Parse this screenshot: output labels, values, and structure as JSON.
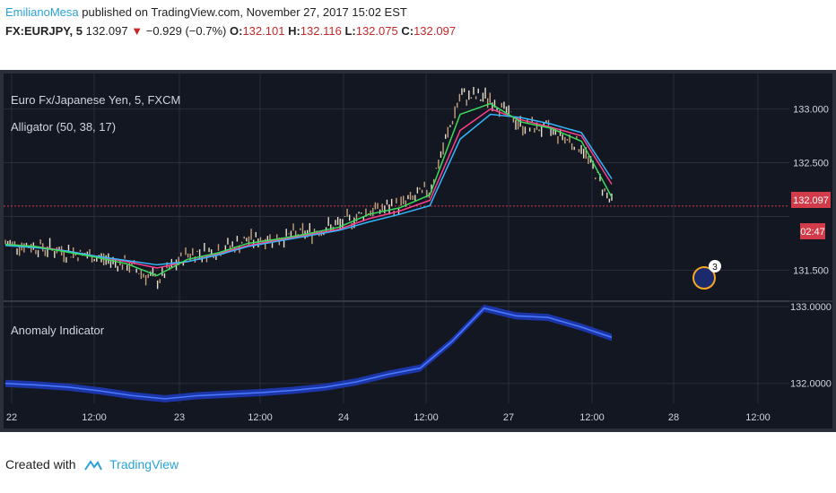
{
  "header": {
    "author": "EmilianoMesa",
    "published": "published on TradingView.com, November 27, 2017 15:02 EST",
    "symbol": "FX:EURJPY, 5",
    "last": "132.097",
    "change": "−0.929 (−0.7%)",
    "o_label": "O:",
    "o_value": "132.101",
    "h_label": "H:",
    "h_value": "132.116",
    "l_label": "L:",
    "l_value": "132.075",
    "c_label": "C:",
    "c_value": "132.097"
  },
  "chart_data": [
    {
      "type": "candlestick",
      "title": "Euro Fx/Japanese Yen, 5, FXCM",
      "indicator": "Alligator (50, 38, 17)",
      "ylim": [
        131.22,
        133.33
      ],
      "y_ticks": [
        "133.000",
        "132.500",
        "131.500"
      ],
      "price_label": "132.097",
      "countdown_label": "02:47",
      "current_price": 132.097,
      "grid": true,
      "series": [
        {
          "color": "#f0e68c",
          "x": [
            0,
            4,
            8,
            12,
            16,
            20,
            24,
            28,
            32,
            36,
            40,
            44,
            48,
            52,
            56,
            60,
            64,
            68,
            72,
            76,
            78
          ],
          "values": [
            131.75,
            131.72,
            131.67,
            131.62,
            131.55,
            131.4,
            131.65,
            131.68,
            131.78,
            131.8,
            131.85,
            131.92,
            132.05,
            132.1,
            132.25,
            133.12,
            133.1,
            132.85,
            132.8,
            132.65,
            132.12
          ]
        }
      ],
      "lines": [
        {
          "color": "#ff3f8e",
          "values": [
            131.74,
            131.72,
            131.68,
            131.63,
            131.58,
            131.52,
            131.58,
            131.65,
            131.73,
            131.78,
            131.83,
            131.88,
            131.98,
            132.05,
            132.15,
            132.8,
            133.0,
            132.9,
            132.83,
            132.75,
            132.3
          ]
        },
        {
          "color": "#34b7ff",
          "values": [
            131.73,
            131.71,
            131.68,
            131.63,
            131.59,
            131.55,
            131.58,
            131.64,
            131.72,
            131.77,
            131.82,
            131.87,
            131.95,
            132.02,
            132.1,
            132.72,
            132.95,
            132.92,
            132.86,
            132.78,
            132.35
          ]
        },
        {
          "color": "#3ddc5c",
          "values": [
            131.74,
            131.72,
            131.67,
            131.62,
            131.56,
            131.45,
            131.6,
            131.66,
            131.75,
            131.79,
            131.84,
            131.9,
            132.02,
            132.08,
            132.2,
            132.95,
            133.05,
            132.88,
            132.82,
            132.7,
            132.18
          ]
        }
      ],
      "event_badge": "3"
    },
    {
      "type": "area",
      "title": "Anomaly Indicator",
      "ylim": [
        131.74,
        133.06
      ],
      "y_ticks": [
        "133.0000",
        "132.0000"
      ],
      "x_ticks": [
        "22",
        "12:00",
        "23",
        "12:00",
        "24",
        "12:00",
        "27",
        "12:00",
        "28",
        "12:00"
      ],
      "series": [
        {
          "name": "",
          "values": [
            132.0,
            131.98,
            131.95,
            131.9,
            131.84,
            131.8,
            131.84,
            131.86,
            131.88,
            131.91,
            131.95,
            132.02,
            132.12,
            132.2,
            132.55,
            132.98,
            132.88,
            132.86,
            132.74,
            132.6
          ]
        }
      ]
    }
  ],
  "footer": {
    "created_with": "Created with",
    "tradingview": "TradingView"
  }
}
